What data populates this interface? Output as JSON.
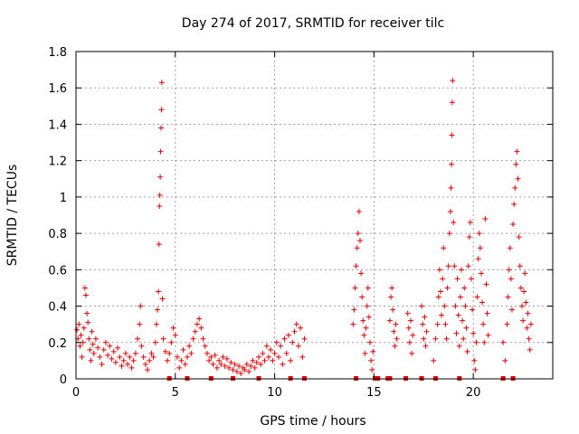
{
  "chart_data": {
    "type": "scatter",
    "title": "Day 274 of 2017, SRMTID for receiver tilc",
    "xlabel": "GPS time / hours",
    "ylabel": "SRMTID / TECUs",
    "xlim": [
      0,
      24
    ],
    "ylim": [
      0,
      1.8
    ],
    "xticks": [
      "0",
      "5",
      "10",
      "15",
      "20"
    ],
    "xtick_values": [
      0,
      5,
      10,
      15,
      20
    ],
    "yticks": [
      "0",
      "0.2",
      "0.4",
      "0.6",
      "0.8",
      "1",
      "1.2",
      "1.4",
      "1.6",
      "1.8"
    ],
    "ytick_values": [
      0,
      0.2,
      0.4,
      0.6,
      0.8,
      1.0,
      1.2,
      1.4,
      1.6,
      1.8
    ],
    "grid": true,
    "marker_color": "#e00000",
    "series": [
      {
        "name": "SRMTID",
        "marker": "plus",
        "points": [
          [
            0.05,
            0.27
          ],
          [
            0.1,
            0.22
          ],
          [
            0.15,
            0.3
          ],
          [
            0.2,
            0.18
          ],
          [
            0.25,
            0.24
          ],
          [
            0.3,
            0.12
          ],
          [
            0.35,
            0.2
          ],
          [
            0.4,
            0.28
          ],
          [
            0.45,
            0.5
          ],
          [
            0.5,
            0.46
          ],
          [
            0.55,
            0.36
          ],
          [
            0.6,
            0.31
          ],
          [
            0.65,
            0.22
          ],
          [
            0.7,
            0.16
          ],
          [
            0.75,
            0.1
          ],
          [
            0.8,
            0.26
          ],
          [
            0.85,
            0.19
          ],
          [
            0.9,
            0.14
          ],
          [
            1.0,
            0.22
          ],
          [
            1.1,
            0.17
          ],
          [
            1.2,
            0.12
          ],
          [
            1.3,
            0.08
          ],
          [
            1.4,
            0.16
          ],
          [
            1.5,
            0.2
          ],
          [
            1.6,
            0.13
          ],
          [
            1.7,
            0.18
          ],
          [
            1.8,
            0.11
          ],
          [
            1.9,
            0.15
          ],
          [
            2.0,
            0.09
          ],
          [
            2.1,
            0.17
          ],
          [
            2.2,
            0.12
          ],
          [
            2.3,
            0.07
          ],
          [
            2.4,
            0.1
          ],
          [
            2.5,
            0.14
          ],
          [
            2.6,
            0.08
          ],
          [
            2.7,
            0.12
          ],
          [
            2.8,
            0.06
          ],
          [
            2.9,
            0.1
          ],
          [
            3.0,
            0.14
          ],
          [
            3.1,
            0.22
          ],
          [
            3.2,
            0.3
          ],
          [
            3.25,
            0.4
          ],
          [
            3.3,
            0.18
          ],
          [
            3.4,
            0.12
          ],
          [
            3.5,
            0.08
          ],
          [
            3.6,
            0.05
          ],
          [
            3.7,
            0.1
          ],
          [
            3.8,
            0.14
          ],
          [
            3.9,
            0.12
          ],
          [
            4.0,
            0.2
          ],
          [
            4.05,
            0.3
          ],
          [
            4.1,
            0.38
          ],
          [
            4.15,
            0.48
          ],
          [
            4.18,
            0.74
          ],
          [
            4.2,
            0.95
          ],
          [
            4.22,
            1.01
          ],
          [
            4.24,
            1.11
          ],
          [
            4.26,
            1.25
          ],
          [
            4.28,
            1.38
          ],
          [
            4.3,
            1.48
          ],
          [
            4.32,
            1.63
          ],
          [
            4.35,
            0.44
          ],
          [
            4.4,
            0.22
          ],
          [
            4.5,
            0.15
          ],
          [
            4.6,
            0.1
          ],
          [
            4.7,
            0.14
          ],
          [
            4.8,
            0.2
          ],
          [
            4.9,
            0.28
          ],
          [
            5.0,
            0.24
          ],
          [
            5.1,
            0.12
          ],
          [
            5.2,
            0.06
          ],
          [
            5.3,
            0.1
          ],
          [
            5.4,
            0.16
          ],
          [
            5.5,
            0.08
          ],
          [
            5.6,
            0.12
          ],
          [
            5.7,
            0.18
          ],
          [
            5.8,
            0.14
          ],
          [
            5.9,
            0.22
          ],
          [
            6.0,
            0.26
          ],
          [
            6.1,
            0.3
          ],
          [
            6.2,
            0.33
          ],
          [
            6.3,
            0.28
          ],
          [
            6.4,
            0.22
          ],
          [
            6.5,
            0.18
          ],
          [
            6.6,
            0.14
          ],
          [
            6.7,
            0.1
          ],
          [
            6.8,
            0.12
          ],
          [
            6.9,
            0.08
          ],
          [
            7.0,
            0.13
          ],
          [
            7.1,
            0.06
          ],
          [
            7.2,
            0.1
          ],
          [
            7.3,
            0.08
          ],
          [
            7.4,
            0.12
          ],
          [
            7.5,
            0.07
          ],
          [
            7.6,
            0.11
          ],
          [
            7.7,
            0.06
          ],
          [
            7.8,
            0.09
          ],
          [
            7.9,
            0.05
          ],
          [
            8.0,
            0.08
          ],
          [
            8.1,
            0.04
          ],
          [
            8.2,
            0.07
          ],
          [
            8.3,
            0.03
          ],
          [
            8.4,
            0.06
          ],
          [
            8.5,
            0.05
          ],
          [
            8.6,
            0.08
          ],
          [
            8.7,
            0.04
          ],
          [
            8.8,
            0.07
          ],
          [
            8.9,
            0.1
          ],
          [
            9.0,
            0.06
          ],
          [
            9.1,
            0.09
          ],
          [
            9.2,
            0.12
          ],
          [
            9.3,
            0.08
          ],
          [
            9.4,
            0.14
          ],
          [
            9.5,
            0.1
          ],
          [
            9.6,
            0.18
          ],
          [
            9.7,
            0.12
          ],
          [
            9.8,
            0.16
          ],
          [
            9.9,
            0.1
          ],
          [
            10.0,
            0.14
          ],
          [
            10.1,
            0.2
          ],
          [
            10.2,
            0.12
          ],
          [
            10.3,
            0.18
          ],
          [
            10.4,
            0.08
          ],
          [
            10.5,
            0.22
          ],
          [
            10.6,
            0.14
          ],
          [
            10.7,
            0.24
          ],
          [
            10.8,
            0.1
          ],
          [
            10.9,
            0.2
          ],
          [
            11.0,
            0.26
          ],
          [
            11.1,
            0.3
          ],
          [
            11.2,
            0.18
          ],
          [
            11.3,
            0.28
          ],
          [
            11.4,
            0.12
          ],
          [
            11.5,
            0.22
          ],
          [
            13.95,
            0.3
          ],
          [
            14.0,
            0.38
          ],
          [
            14.05,
            0.5
          ],
          [
            14.1,
            0.62
          ],
          [
            14.15,
            0.72
          ],
          [
            14.2,
            0.8
          ],
          [
            14.25,
            0.92
          ],
          [
            14.3,
            0.76
          ],
          [
            14.35,
            0.58
          ],
          [
            14.4,
            0.45
          ],
          [
            14.45,
            0.32
          ],
          [
            14.5,
            0.24
          ],
          [
            14.55,
            0.14
          ],
          [
            14.6,
            0.28
          ],
          [
            14.65,
            0.4
          ],
          [
            14.7,
            0.5
          ],
          [
            14.75,
            0.34
          ],
          [
            14.8,
            0.2
          ],
          [
            14.85,
            0.1
          ],
          [
            14.9,
            0.05
          ],
          [
            14.95,
            0.15
          ],
          [
            15.8,
            0.32
          ],
          [
            15.85,
            0.45
          ],
          [
            15.9,
            0.5
          ],
          [
            15.95,
            0.38
          ],
          [
            16.0,
            0.26
          ],
          [
            16.05,
            0.18
          ],
          [
            16.1,
            0.3
          ],
          [
            16.15,
            0.22
          ],
          [
            16.7,
            0.36
          ],
          [
            16.75,
            0.28
          ],
          [
            16.8,
            0.2
          ],
          [
            16.85,
            0.32
          ],
          [
            16.9,
            0.14
          ],
          [
            16.95,
            0.24
          ],
          [
            17.4,
            0.4
          ],
          [
            17.45,
            0.3
          ],
          [
            17.5,
            0.22
          ],
          [
            17.55,
            0.34
          ],
          [
            17.6,
            0.18
          ],
          [
            17.65,
            0.26
          ],
          [
            18.0,
            0.1
          ],
          [
            18.1,
            0.22
          ],
          [
            18.2,
            0.3
          ],
          [
            18.25,
            0.45
          ],
          [
            18.3,
            0.6
          ],
          [
            18.35,
            0.48
          ],
          [
            18.4,
            0.35
          ],
          [
            18.45,
            0.55
          ],
          [
            18.5,
            0.72
          ],
          [
            18.55,
            0.4
          ],
          [
            18.6,
            0.3
          ],
          [
            18.65,
            0.22
          ],
          [
            18.7,
            0.5
          ],
          [
            18.75,
            0.62
          ],
          [
            18.8,
            0.8
          ],
          [
            18.85,
            0.92
          ],
          [
            18.88,
            1.05
          ],
          [
            18.9,
            1.18
          ],
          [
            18.92,
            1.34
          ],
          [
            18.94,
            1.52
          ],
          [
            18.96,
            1.64
          ],
          [
            19.0,
            0.86
          ],
          [
            19.05,
            0.62
          ],
          [
            19.1,
            0.4
          ],
          [
            19.15,
            0.25
          ],
          [
            19.2,
            0.55
          ],
          [
            19.25,
            0.35
          ],
          [
            19.3,
            0.18
          ],
          [
            19.35,
            0.45
          ],
          [
            19.4,
            0.6
          ],
          [
            19.45,
            0.32
          ],
          [
            19.5,
            0.22
          ],
          [
            19.55,
            0.5
          ],
          [
            19.6,
            0.4
          ],
          [
            19.65,
            0.28
          ],
          [
            19.7,
            0.15
          ],
          [
            19.75,
            0.62
          ],
          [
            19.8,
            0.78
          ],
          [
            19.85,
            0.86
          ],
          [
            19.9,
            0.55
          ],
          [
            19.95,
            0.38
          ],
          [
            20.0,
            0.25
          ],
          [
            20.05,
            0.1
          ],
          [
            20.1,
            0.05
          ],
          [
            20.15,
            0.2
          ],
          [
            20.2,
            0.45
          ],
          [
            20.25,
            0.66
          ],
          [
            20.3,
            0.8
          ],
          [
            20.35,
            0.72
          ],
          [
            20.4,
            0.58
          ],
          [
            20.45,
            0.42
          ],
          [
            20.5,
            0.3
          ],
          [
            20.55,
            0.2
          ],
          [
            20.6,
            0.88
          ],
          [
            20.65,
            0.52
          ],
          [
            20.7,
            0.36
          ],
          [
            20.75,
            0.24
          ],
          [
            21.5,
            0.2
          ],
          [
            21.6,
            0.1
          ],
          [
            21.7,
            0.3
          ],
          [
            21.75,
            0.45
          ],
          [
            21.8,
            0.6
          ],
          [
            21.85,
            0.72
          ],
          [
            21.9,
            0.55
          ],
          [
            21.95,
            0.38
          ],
          [
            22.0,
            0.85
          ],
          [
            22.05,
            0.96
          ],
          [
            22.1,
            1.05
          ],
          [
            22.15,
            1.18
          ],
          [
            22.2,
            1.25
          ],
          [
            22.25,
            1.1
          ],
          [
            22.3,
            0.78
          ],
          [
            22.35,
            0.62
          ],
          [
            22.4,
            0.5
          ],
          [
            22.45,
            0.4
          ],
          [
            22.5,
            0.32
          ],
          [
            22.55,
            0.48
          ],
          [
            22.6,
            0.58
          ],
          [
            22.65,
            0.42
          ],
          [
            22.7,
            0.28
          ],
          [
            22.75,
            0.36
          ],
          [
            22.8,
            0.22
          ],
          [
            22.85,
            0.16
          ],
          [
            22.9,
            0.3
          ]
        ],
        "zero_points": [
          4.7,
          5.6,
          6.8,
          7.9,
          9.2,
          10.8,
          11.5,
          14.1,
          15.05,
          15.1,
          15.2,
          15.7,
          15.8,
          16.6,
          17.4,
          18.1,
          19.3,
          21.5,
          22.0
        ]
      }
    ]
  }
}
